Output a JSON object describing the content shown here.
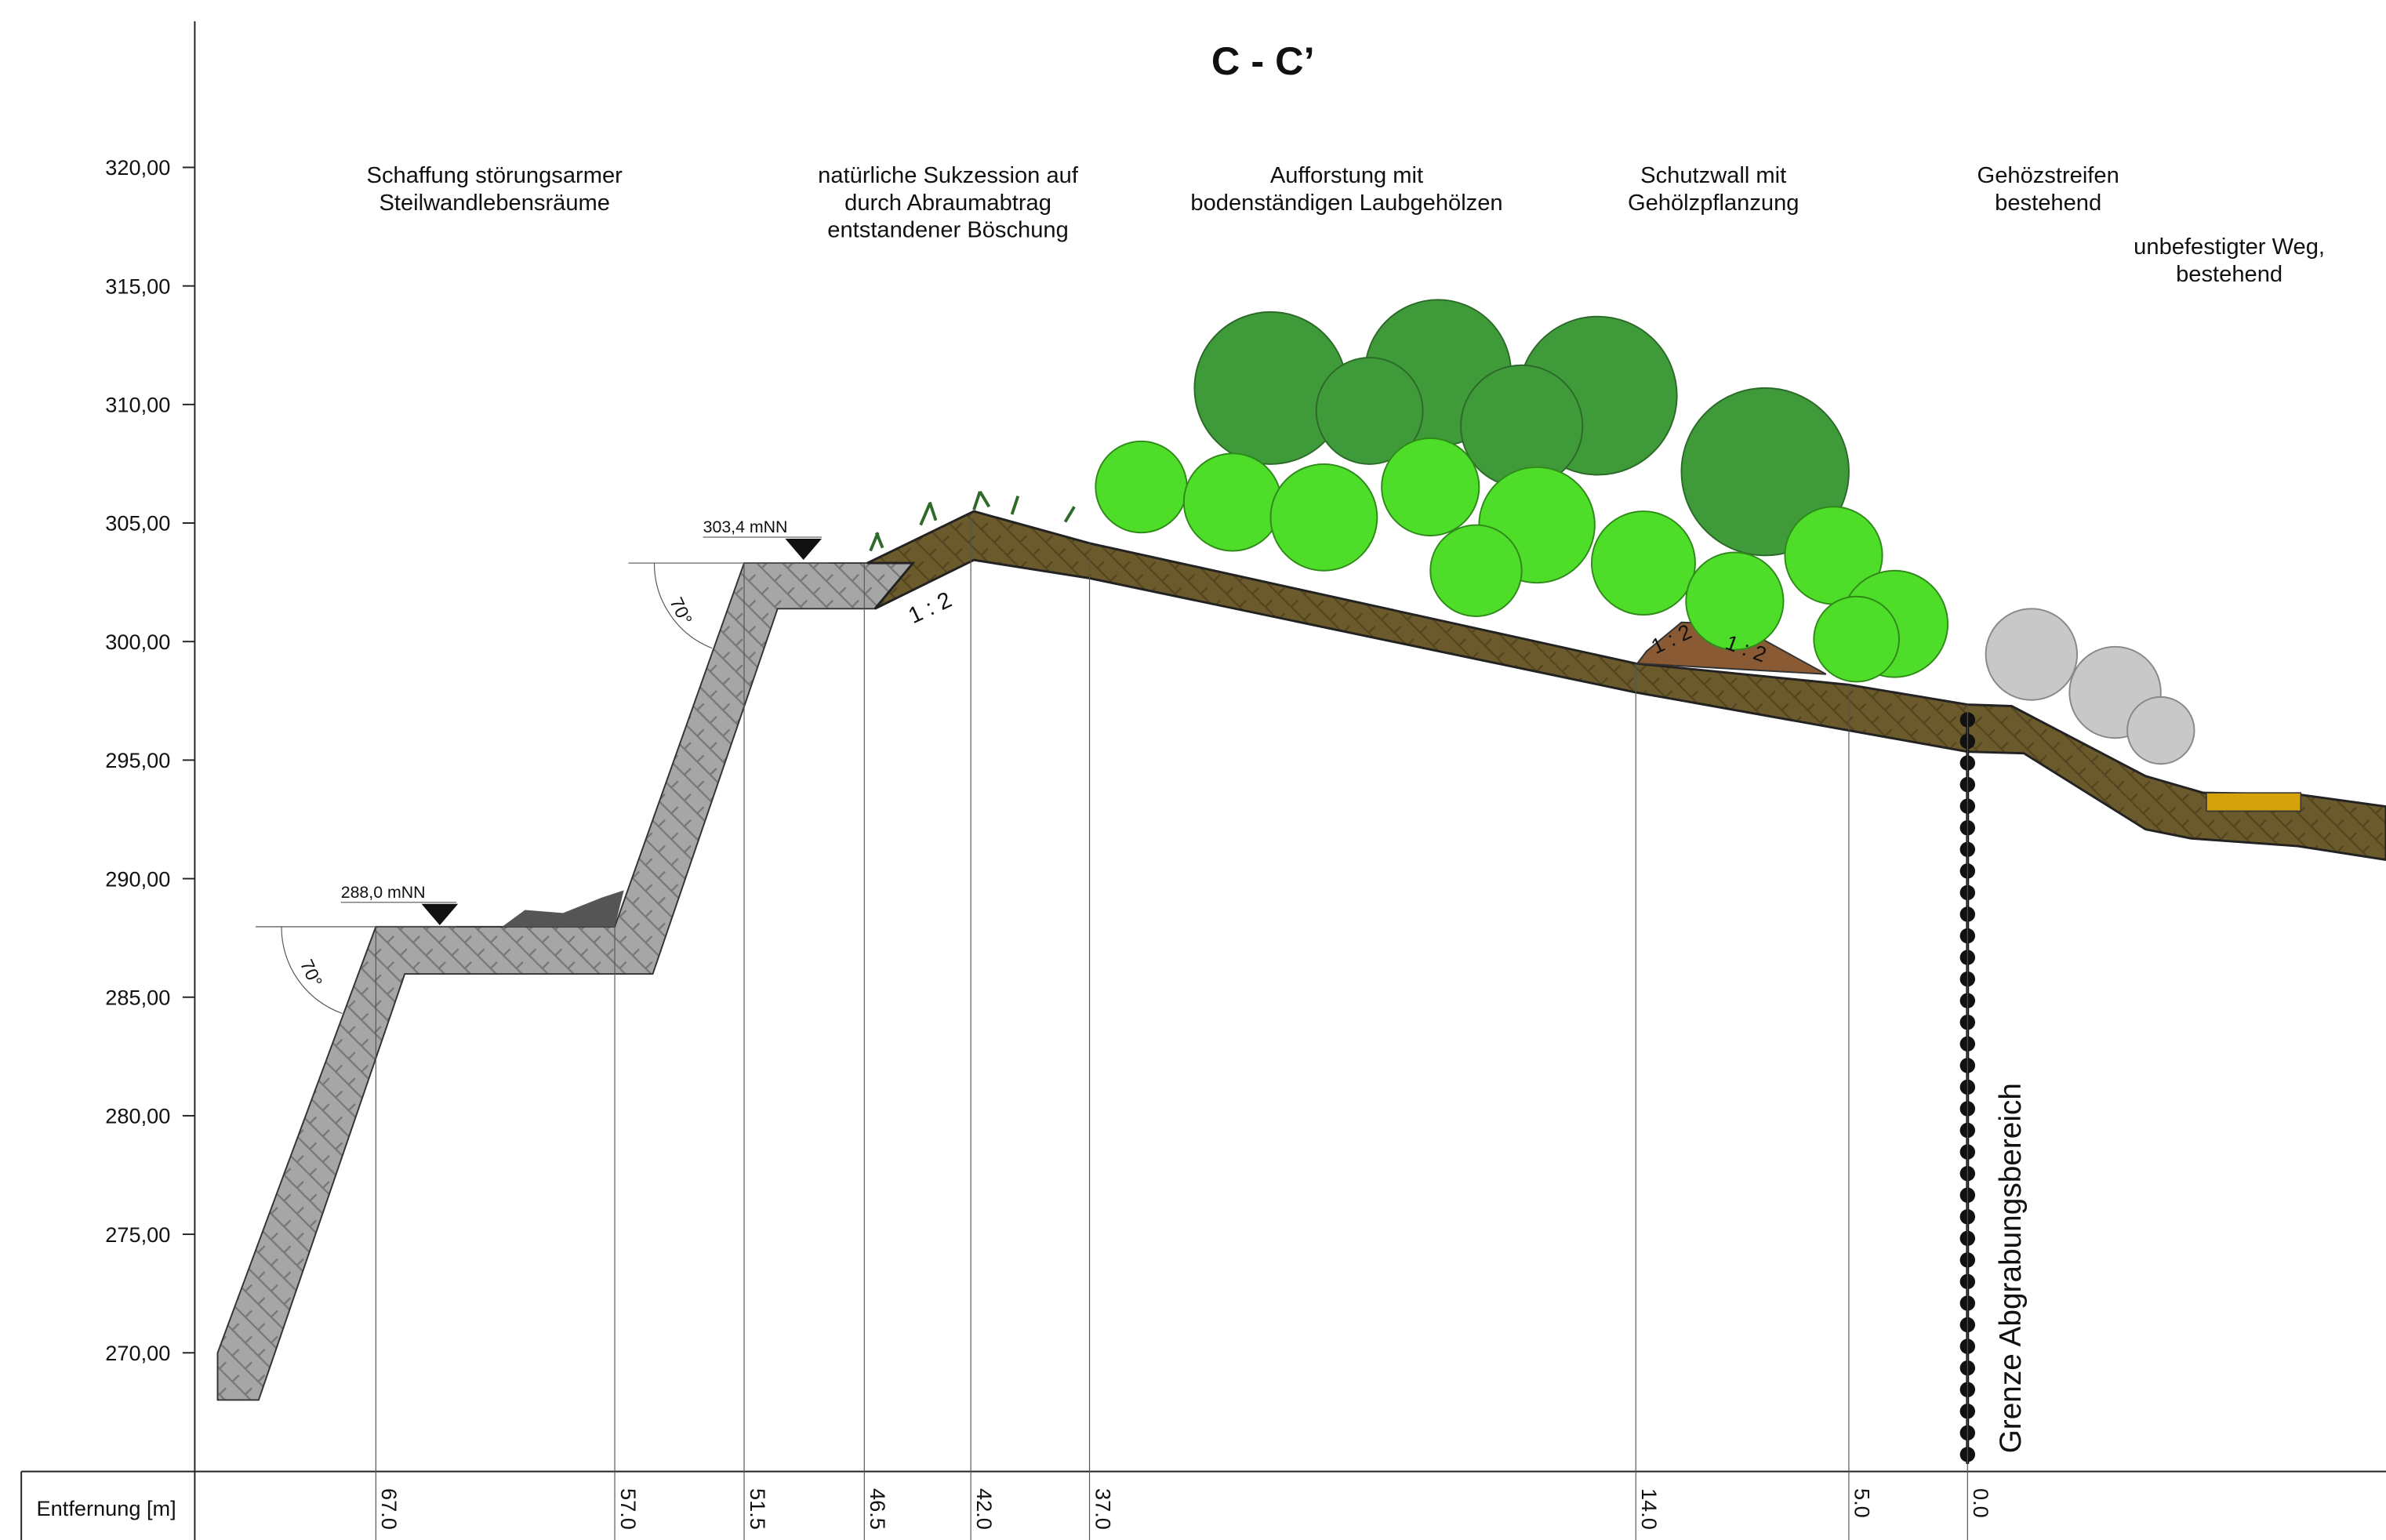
{
  "title": "C - C’",
  "elevation_labels": [
    "320,00",
    "315,00",
    "310,00",
    "305,00",
    "300,00",
    "295,00",
    "290,00",
    "285,00",
    "280,00",
    "275,00",
    "270,00"
  ],
  "annotations": [
    {
      "lines": [
        "Schaffung störungsarmer",
        "Steilwandlebensräume"
      ]
    },
    {
      "lines": [
        "natürliche Sukzession auf",
        "durch Abraumabtrag",
        "entstandener Böschung"
      ]
    },
    {
      "lines": [
        "Aufforstung mit",
        "bodenständigen Laubgehölzen"
      ]
    },
    {
      "lines": [
        "Schutzwall mit",
        "Gehölzpflanzung"
      ]
    },
    {
      "lines": [
        "Gehözstreifen",
        "bestehend"
      ]
    },
    {
      "lines": [
        "unbefestigter Weg,",
        "bestehend"
      ]
    }
  ],
  "levels": [
    "303,4 mNN",
    "288,0 mNN"
  ],
  "angles": [
    "70°",
    "70°"
  ],
  "slopes": [
    "1 : 2",
    "1 : 2",
    "1 : 2"
  ],
  "boundary": "Grenze Abgrabungsbereich",
  "distance_table": {
    "header": "Entfernung [m]",
    "values": [
      "67.0",
      "57.0",
      "51.5",
      "46.5",
      "42.0",
      "37.0",
      "14.0",
      "5.0",
      "0.0"
    ]
  }
}
